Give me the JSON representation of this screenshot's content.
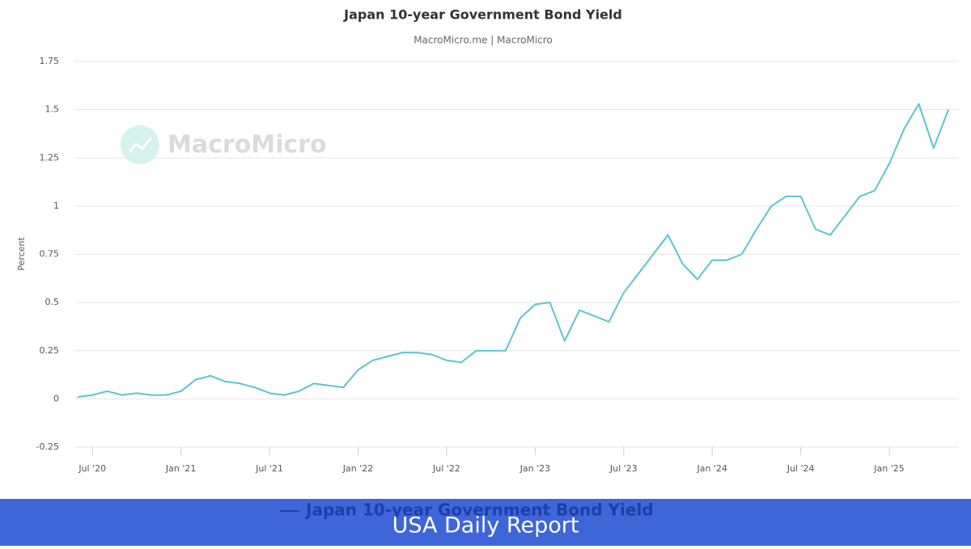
{
  "chart_data": {
    "type": "line",
    "title": "Japan 10-year Government Bond Yield",
    "subtitle": "MacroMicro.me | MacroMicro",
    "watermark": "MacroMicro",
    "y_label": "Percent",
    "banner": "USA Daily Report",
    "x": [
      "2020-06",
      "2020-07",
      "2020-08",
      "2020-09",
      "2020-10",
      "2020-11",
      "2020-12",
      "2021-01",
      "2021-02",
      "2021-03",
      "2021-04",
      "2021-05",
      "2021-06",
      "2021-07",
      "2021-08",
      "2021-09",
      "2021-10",
      "2021-11",
      "2021-12",
      "2022-01",
      "2022-02",
      "2022-03",
      "2022-04",
      "2022-05",
      "2022-06",
      "2022-07",
      "2022-08",
      "2022-09",
      "2022-10",
      "2022-11",
      "2022-12",
      "2023-01",
      "2023-02",
      "2023-03",
      "2023-04",
      "2023-05",
      "2023-06",
      "2023-07",
      "2023-08",
      "2023-09",
      "2023-10",
      "2023-11",
      "2023-12",
      "2024-01",
      "2024-02",
      "2024-03",
      "2024-04",
      "2024-05",
      "2024-06",
      "2024-07",
      "2024-08",
      "2024-09",
      "2024-10",
      "2024-11",
      "2024-12",
      "2025-01",
      "2025-02",
      "2025-03",
      "2025-04",
      "2025-05"
    ],
    "series": [
      {
        "name": "Japan 10-year Government Bond Yield",
        "color": "#5bc4d1",
        "values": [
          0.01,
          0.02,
          0.04,
          0.02,
          0.03,
          0.02,
          0.02,
          0.04,
          0.1,
          0.12,
          0.09,
          0.08,
          0.06,
          0.03,
          0.02,
          0.04,
          0.08,
          0.07,
          0.06,
          0.15,
          0.2,
          0.22,
          0.24,
          0.24,
          0.23,
          0.2,
          0.19,
          0.25,
          0.25,
          0.25,
          0.42,
          0.49,
          0.5,
          0.3,
          0.46,
          0.43,
          0.4,
          0.55,
          0.65,
          0.75,
          0.85,
          0.7,
          0.62,
          0.72,
          0.72,
          0.75,
          0.88,
          1.0,
          1.05,
          1.05,
          0.88,
          0.85,
          0.95,
          1.05,
          1.08,
          1.22,
          1.4,
          1.53,
          1.3,
          1.5
        ]
      }
    ],
    "xlim": [
      "2020-06",
      "2025-05"
    ],
    "xticks": [
      {
        "value": "2020-07",
        "label": "Jul '20"
      },
      {
        "value": "2021-01",
        "label": "Jan '21"
      },
      {
        "value": "2021-07",
        "label": "Jul '21"
      },
      {
        "value": "2022-01",
        "label": "Jan '22"
      },
      {
        "value": "2022-07",
        "label": "Jul '22"
      },
      {
        "value": "2023-01",
        "label": "Jan '23"
      },
      {
        "value": "2023-07",
        "label": "Jul '23"
      },
      {
        "value": "2024-01",
        "label": "Jan '24"
      },
      {
        "value": "2024-07",
        "label": "Jul '24"
      },
      {
        "value": "2025-01",
        "label": "Jan '25"
      }
    ],
    "ylim": [
      -0.25,
      1.75
    ],
    "yticks": [
      -0.25,
      0,
      0.25,
      0.5,
      0.75,
      1,
      1.25,
      1.5,
      1.75
    ],
    "grid": true
  }
}
